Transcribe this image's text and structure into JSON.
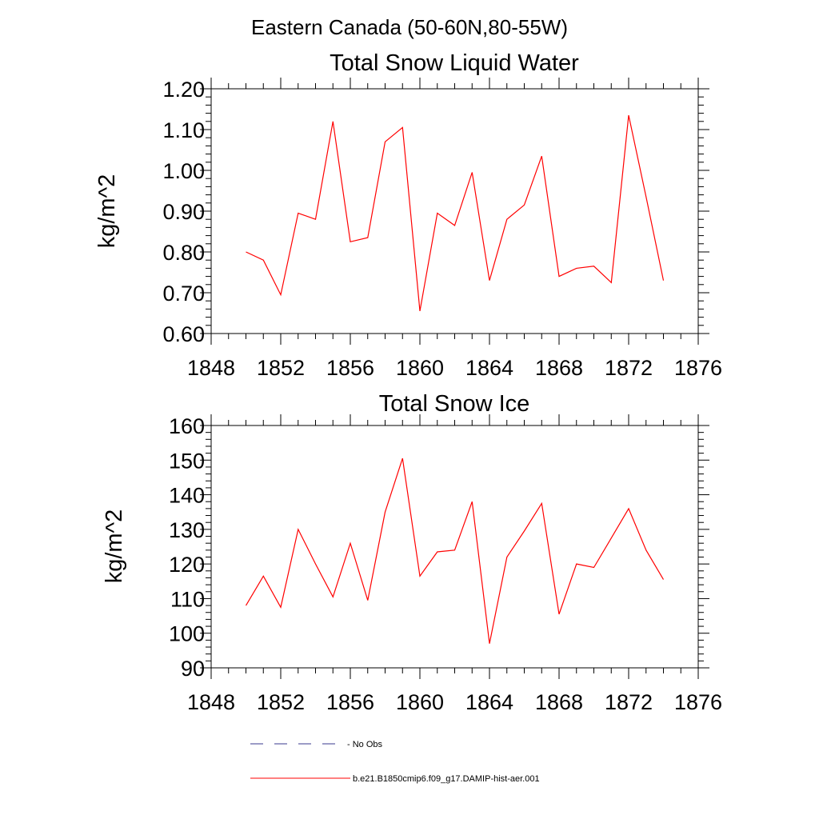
{
  "main_title": "Eastern Canada (50-60N,80-55W)",
  "legend": {
    "no_obs_label": "- No Obs",
    "model_label": "b.e21.B1850cmip6.f09_g17.DAMIP-hist-aer.001",
    "model_color": "#ff0000",
    "no_obs_color": "#3a3a8c"
  },
  "chart_data": [
    {
      "type": "line",
      "title": "Total Snow Liquid Water",
      "ylabel": "kg/m^2",
      "xlabel": "",
      "xlim": [
        1848,
        1876
      ],
      "ylim": [
        0.6,
        1.2
      ],
      "xticks": [
        1848,
        1852,
        1856,
        1860,
        1864,
        1868,
        1872,
        1876
      ],
      "xtick_labels": [
        "1848",
        "1852",
        "1856",
        "1860",
        "1864",
        "1868",
        "1872",
        "1876"
      ],
      "yticks": [
        0.6,
        0.7,
        0.8,
        0.9,
        1.0,
        1.1,
        1.2
      ],
      "ytick_labels": [
        "0.60",
        "0.70",
        "0.80",
        "0.90",
        "1.00",
        "1.10",
        "1.20"
      ],
      "grid": false,
      "series": [
        {
          "color": "#ff0000",
          "x": [
            1850,
            1851,
            1852,
            1853,
            1854,
            1855,
            1856,
            1857,
            1858,
            1859,
            1860,
            1861,
            1862,
            1863,
            1864,
            1865,
            1866,
            1867,
            1868,
            1869,
            1870,
            1871,
            1872,
            1873,
            1874
          ],
          "values": [
            0.8,
            0.78,
            0.695,
            0.895,
            0.88,
            1.12,
            0.825,
            0.835,
            1.07,
            1.105,
            0.655,
            0.895,
            0.865,
            0.995,
            0.73,
            0.88,
            0.915,
            1.035,
            0.74,
            0.76,
            0.765,
            0.725,
            1.135,
            0.935,
            0.73
          ]
        }
      ]
    },
    {
      "type": "line",
      "title": "Total Snow Ice",
      "ylabel": "kg/m^2",
      "xlabel": "",
      "xlim": [
        1848,
        1876
      ],
      "ylim": [
        90,
        160
      ],
      "xticks": [
        1848,
        1852,
        1856,
        1860,
        1864,
        1868,
        1872,
        1876
      ],
      "xtick_labels": [
        "1848",
        "1852",
        "1856",
        "1860",
        "1864",
        "1868",
        "1872",
        "1876"
      ],
      "yticks": [
        90,
        100,
        110,
        120,
        130,
        140,
        150,
        160
      ],
      "ytick_labels": [
        "90",
        "100",
        "110",
        "120",
        "130",
        "140",
        "150",
        "160"
      ],
      "grid": false,
      "series": [
        {
          "color": "#ff0000",
          "x": [
            1850,
            1851,
            1852,
            1853,
            1854,
            1855,
            1856,
            1857,
            1858,
            1859,
            1860,
            1861,
            1862,
            1863,
            1864,
            1865,
            1866,
            1867,
            1868,
            1869,
            1870,
            1871,
            1872,
            1873,
            1874
          ],
          "values": [
            108,
            116.5,
            107.5,
            130,
            120,
            110.5,
            126,
            109.5,
            135,
            150.5,
            116.5,
            123.5,
            124,
            138,
            97,
            122,
            129.5,
            137.5,
            105.5,
            120,
            119,
            127.5,
            136,
            124,
            115.5
          ]
        }
      ]
    }
  ]
}
